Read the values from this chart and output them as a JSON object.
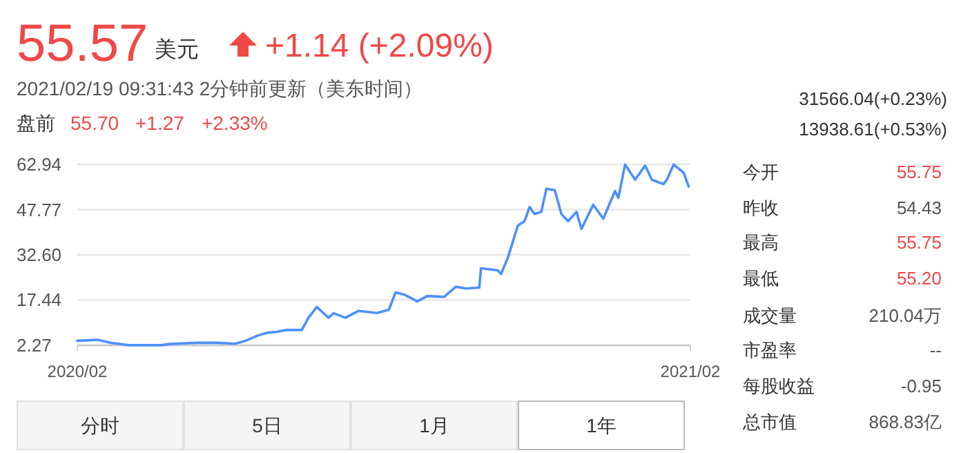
{
  "chart_data": {
    "type": "line",
    "grid": "y",
    "color": "#4d90fe",
    "x": [
      "2020-02-19",
      "2020-02-20",
      "2020-03-02",
      "2020-03-10",
      "2020-03-21",
      "2020-04-09",
      "2020-04-14",
      "2020-05-01",
      "2020-05-12",
      "2020-05-23",
      "2020-05-29",
      "2020-06-06",
      "2020-06-11",
      "2020-06-17",
      "2020-06-23",
      "2020-07-02",
      "2020-07-06",
      "2020-07-11",
      "2020-07-18",
      "2020-07-21",
      "2020-07-28",
      "2020-08-05",
      "2020-08-16",
      "2020-08-23",
      "2020-08-27",
      "2020-09-01",
      "2020-09-09",
      "2020-09-15",
      "2020-09-25",
      "2020-10-02",
      "2020-10-08",
      "2020-10-16",
      "2020-10-17",
      "2020-10-27",
      "2020-10-29",
      "2020-11-02",
      "2020-11-08",
      "2020-11-12",
      "2020-11-15",
      "2020-11-18",
      "2020-11-22",
      "2020-11-25",
      "2020-11-30",
      "2020-12-04",
      "2020-12-08",
      "2020-12-13",
      "2020-12-16",
      "2020-12-23",
      "2020-12-29",
      "2021-01-05",
      "2021-01-07",
      "2021-01-11",
      "2021-01-17",
      "2021-01-23",
      "2021-01-27",
      "2021-02-03",
      "2021-02-05",
      "2021-02-09",
      "2021-02-15",
      "2021-02-18"
    ],
    "values": [
      3.8,
      3.8,
      4.1,
      3.1,
      2.3,
      2.3,
      2.7,
      3.1,
      3.1,
      2.8,
      3.7,
      5.6,
      6.4,
      6.8,
      7.4,
      7.4,
      11.5,
      15.1,
      11.5,
      13.0,
      11.5,
      13.8,
      13.1,
      14.2,
      20.0,
      19.3,
      17.0,
      18.8,
      18.5,
      21.9,
      21.3,
      21.6,
      28.1,
      27.4,
      26.2,
      31.6,
      42.4,
      43.9,
      48.6,
      46.3,
      47.0,
      54.7,
      54.3,
      46.3,
      43.9,
      47.0,
      41.3,
      49.4,
      44.7,
      54.0,
      51.7,
      62.9,
      57.8,
      62.5,
      57.8,
      56.3,
      57.8,
      62.9,
      60.1,
      55.5
    ],
    "xlim": [
      "2020-02-19",
      "2021-02-19"
    ],
    "xticks": [
      {
        "value": "2020-02-19",
        "label": "2020/02"
      },
      {
        "value": "2021-02-19",
        "label": "2021/02"
      }
    ],
    "ylim": [
      2.27,
      62.94
    ],
    "yticks": [
      2.27,
      17.44,
      {
        "value": 32.6,
        "label": "32.60"
      },
      47.77,
      62.94
    ],
    "annotations": [
      "55.57",
      "美元",
      "+1.14 (+2.09%)",
      "2021/02/19 09:31:43 2分钟前更新（美东时间）",
      "盘前",
      "55.70",
      "+1.27",
      "+2.33%",
      "31566.04(+0.23%)",
      "13938.61(+0.53%)",
      "今开",
      "55.75",
      "昨收",
      "54.43",
      "最高",
      "55.75",
      "最低",
      "55.20",
      "成交量",
      "210.04万",
      "市盈率",
      "--",
      "每股收益",
      "-0.95",
      "总市值",
      "868.83亿",
      "分时",
      "5日",
      "1月",
      "1年"
    ]
  }
}
